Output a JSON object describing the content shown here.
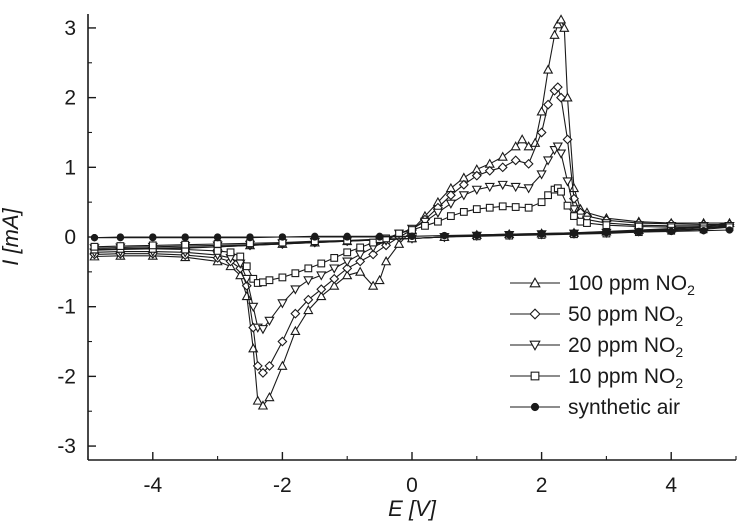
{
  "chart_data": {
    "type": "line",
    "xlabel": "E [V]",
    "ylabel": "I [mA]",
    "xlim": [
      -5,
      5
    ],
    "ylim": [
      -3.2,
      3.2
    ],
    "x_ticks": [
      -4,
      -2,
      0,
      2,
      4
    ],
    "x_tick_labels": [
      "-4",
      "-2",
      "0",
      "2",
      "4"
    ],
    "y_ticks": [
      -3,
      -2,
      -1,
      0,
      1,
      2,
      3
    ],
    "y_tick_labels": [
      "-3",
      "-2",
      "-1",
      "0",
      "1",
      "2",
      "3"
    ],
    "grid": false,
    "legend_position": "bottom-right",
    "series": [
      {
        "name": "100 ppm NO2",
        "legend_label": "100 ppm NO",
        "legend_sub": "2",
        "marker": "triangle-up",
        "color": "#1a1a1a",
        "x": [
          -4.9,
          -4.5,
          -4.0,
          -3.5,
          -3.0,
          -2.8,
          -2.65,
          -2.55,
          -2.45,
          -2.38,
          -2.3,
          -2.2,
          -2.0,
          -1.8,
          -1.6,
          -1.4,
          -1.2,
          -1.0,
          -0.8,
          -0.6,
          -0.5,
          -0.4,
          -0.2,
          0.0,
          0.2,
          0.4,
          0.6,
          0.8,
          1.0,
          1.2,
          1.4,
          1.6,
          1.7,
          1.8,
          1.9,
          2.0,
          2.1,
          2.2,
          2.25,
          2.3,
          2.35,
          2.4,
          2.5,
          2.6,
          2.7,
          3.0,
          3.5,
          4.0,
          4.5,
          4.9,
          4.5,
          4.0,
          3.5,
          3.0,
          2.5,
          2.0,
          1.5,
          1.0,
          0.5,
          0.0,
          -0.5,
          -1.0,
          -1.5,
          -2.0,
          -2.5,
          -3.0,
          -3.5,
          -4.0,
          -4.5,
          -4.9
        ],
        "y": [
          -0.28,
          -0.27,
          -0.27,
          -0.29,
          -0.35,
          -0.42,
          -0.55,
          -0.85,
          -1.6,
          -2.35,
          -2.42,
          -2.3,
          -1.85,
          -1.35,
          -1.05,
          -0.85,
          -0.7,
          -0.55,
          -0.5,
          -0.7,
          -0.62,
          -0.35,
          -0.1,
          0.1,
          0.3,
          0.5,
          0.7,
          0.85,
          0.97,
          1.05,
          1.15,
          1.3,
          1.4,
          1.3,
          1.35,
          1.8,
          2.4,
          2.9,
          3.05,
          3.12,
          3.0,
          2.0,
          0.7,
          0.4,
          0.35,
          0.27,
          0.22,
          0.2,
          0.2,
          0.2,
          0.15,
          0.12,
          0.1,
          0.08,
          0.06,
          0.05,
          0.04,
          0.03,
          0.0,
          -0.02,
          -0.04,
          -0.06,
          -0.08,
          -0.1,
          -0.12,
          -0.14,
          -0.16,
          -0.17,
          -0.18,
          -0.19
        ]
      },
      {
        "name": "50 ppm NO2",
        "legend_label": "50   ppm NO",
        "legend_sub": "2",
        "marker": "diamond",
        "color": "#1a1a1a",
        "x": [
          -4.9,
          -4.5,
          -4.0,
          -3.5,
          -3.0,
          -2.8,
          -2.65,
          -2.55,
          -2.45,
          -2.38,
          -2.3,
          -2.2,
          -2.0,
          -1.8,
          -1.6,
          -1.4,
          -1.2,
          -1.0,
          -0.8,
          -0.6,
          -0.4,
          -0.2,
          0.0,
          0.2,
          0.4,
          0.6,
          0.8,
          1.0,
          1.2,
          1.4,
          1.6,
          1.8,
          2.0,
          2.1,
          2.2,
          2.25,
          2.3,
          2.4,
          2.5,
          2.6,
          2.7,
          3.0,
          3.5,
          4.0,
          4.5,
          4.9,
          4.5,
          4.0,
          3.5,
          3.0,
          2.5,
          2.0,
          1.5,
          1.0,
          0.5,
          0.0,
          -0.5,
          -1.0,
          -1.5,
          -2.0,
          -2.5,
          -3.0,
          -3.5,
          -4.0,
          -4.5,
          -4.9
        ],
        "y": [
          -0.25,
          -0.24,
          -0.24,
          -0.26,
          -0.3,
          -0.35,
          -0.45,
          -0.7,
          -1.3,
          -1.85,
          -1.95,
          -1.85,
          -1.5,
          -1.1,
          -0.9,
          -0.75,
          -0.6,
          -0.45,
          -0.35,
          -0.25,
          -0.12,
          0.0,
          0.1,
          0.25,
          0.42,
          0.6,
          0.75,
          0.88,
          0.95,
          1.0,
          1.1,
          1.05,
          1.5,
          1.9,
          2.1,
          2.15,
          2.0,
          1.4,
          0.55,
          0.35,
          0.3,
          0.24,
          0.2,
          0.19,
          0.18,
          0.18,
          0.14,
          0.11,
          0.09,
          0.07,
          0.05,
          0.04,
          0.03,
          0.02,
          0.0,
          -0.02,
          -0.04,
          -0.06,
          -0.08,
          -0.1,
          -0.12,
          -0.14,
          -0.15,
          -0.16,
          -0.17,
          -0.18
        ]
      },
      {
        "name": "20 ppm NO2",
        "legend_label": "20   ppm NO",
        "legend_sub": "2",
        "marker": "triangle-down",
        "color": "#1a1a1a",
        "x": [
          -4.9,
          -4.5,
          -4.0,
          -3.5,
          -3.0,
          -2.8,
          -2.65,
          -2.55,
          -2.45,
          -2.38,
          -2.3,
          -2.2,
          -2.0,
          -1.8,
          -1.6,
          -1.4,
          -1.2,
          -1.0,
          -0.8,
          -0.6,
          -0.4,
          -0.2,
          0.0,
          0.2,
          0.4,
          0.6,
          0.8,
          1.0,
          1.2,
          1.4,
          1.6,
          1.8,
          2.0,
          2.1,
          2.2,
          2.25,
          2.3,
          2.4,
          2.5,
          2.6,
          2.7,
          3.0,
          3.5,
          4.0,
          4.5,
          4.9,
          4.5,
          4.0,
          3.5,
          3.0,
          2.5,
          2.0,
          1.5,
          1.0,
          0.5,
          0.0,
          -0.5,
          -1.0,
          -1.5,
          -2.0,
          -2.5,
          -3.0,
          -3.5,
          -4.0,
          -4.5,
          -4.9
        ],
        "y": [
          -0.22,
          -0.21,
          -0.21,
          -0.22,
          -0.26,
          -0.3,
          -0.38,
          -0.6,
          -1.0,
          -1.3,
          -1.32,
          -1.2,
          -0.95,
          -0.75,
          -0.62,
          -0.55,
          -0.45,
          -0.35,
          -0.25,
          -0.15,
          -0.05,
          0.05,
          0.12,
          0.22,
          0.35,
          0.48,
          0.6,
          0.68,
          0.72,
          0.75,
          0.72,
          0.7,
          0.9,
          1.1,
          1.25,
          1.3,
          1.2,
          0.8,
          0.4,
          0.28,
          0.25,
          0.2,
          0.17,
          0.16,
          0.16,
          0.16,
          0.12,
          0.1,
          0.08,
          0.06,
          0.05,
          0.04,
          0.03,
          0.02,
          0.0,
          -0.02,
          -0.04,
          -0.05,
          -0.07,
          -0.09,
          -0.11,
          -0.12,
          -0.13,
          -0.14,
          -0.15,
          -0.16
        ]
      },
      {
        "name": "10 ppm NO2",
        "legend_label": "10   ppm NO",
        "legend_sub": "2",
        "marker": "square",
        "color": "#1a1a1a",
        "x": [
          -4.9,
          -4.5,
          -4.0,
          -3.5,
          -3.0,
          -2.8,
          -2.65,
          -2.55,
          -2.45,
          -2.38,
          -2.3,
          -2.2,
          -2.0,
          -1.8,
          -1.6,
          -1.4,
          -1.2,
          -1.0,
          -0.8,
          -0.6,
          -0.4,
          -0.2,
          0.0,
          0.2,
          0.4,
          0.6,
          0.8,
          1.0,
          1.2,
          1.4,
          1.6,
          1.8,
          2.0,
          2.1,
          2.2,
          2.25,
          2.3,
          2.4,
          2.5,
          2.6,
          2.7,
          3.0,
          3.5,
          4.0,
          4.5,
          4.9,
          4.5,
          4.0,
          3.5,
          3.0,
          2.5,
          2.0,
          1.5,
          1.0,
          0.5,
          0.0,
          -0.5,
          -1.0,
          -1.5,
          -2.0,
          -2.5,
          -3.0,
          -3.5,
          -4.0,
          -4.5,
          -4.9
        ],
        "y": [
          -0.18,
          -0.17,
          -0.17,
          -0.18,
          -0.2,
          -0.22,
          -0.28,
          -0.42,
          -0.6,
          -0.66,
          -0.65,
          -0.62,
          -0.58,
          -0.52,
          -0.45,
          -0.38,
          -0.3,
          -0.22,
          -0.15,
          -0.08,
          -0.02,
          0.05,
          0.1,
          0.16,
          0.22,
          0.3,
          0.36,
          0.4,
          0.42,
          0.44,
          0.43,
          0.42,
          0.5,
          0.6,
          0.68,
          0.7,
          0.65,
          0.45,
          0.3,
          0.22,
          0.2,
          0.17,
          0.15,
          0.14,
          0.14,
          0.14,
          0.11,
          0.09,
          0.07,
          0.05,
          0.04,
          0.03,
          0.02,
          0.01,
          0.0,
          -0.02,
          -0.03,
          -0.05,
          -0.06,
          -0.08,
          -0.09,
          -0.1,
          -0.11,
          -0.12,
          -0.13,
          -0.14
        ]
      },
      {
        "name": "synthetic air",
        "legend_label": "synthetic air",
        "legend_sub": "",
        "marker": "dot",
        "color": "#1a1a1a",
        "x": [
          -4.9,
          -4.5,
          -4.0,
          -3.5,
          -3.0,
          -2.5,
          -2.0,
          -1.5,
          -1.0,
          -0.5,
          0.0,
          0.5,
          1.0,
          1.5,
          2.0,
          2.5,
          3.0,
          3.5,
          4.0,
          4.5,
          4.9,
          4.5,
          4.0,
          3.5,
          3.0,
          2.5,
          2.0,
          1.5,
          1.0,
          0.5,
          0.0,
          -0.5,
          -1.0,
          -1.5,
          -2.0,
          -2.5,
          -3.0,
          -3.5,
          -4.0,
          -4.5,
          -4.9
        ],
        "y": [
          -0.01,
          -0.01,
          -0.01,
          -0.01,
          -0.01,
          -0.01,
          0.0,
          0.0,
          0.0,
          0.0,
          0.01,
          0.02,
          0.03,
          0.04,
          0.05,
          0.06,
          0.07,
          0.08,
          0.08,
          0.09,
          0.1,
          0.09,
          0.08,
          0.07,
          0.06,
          0.05,
          0.04,
          0.03,
          0.02,
          0.02,
          0.01,
          0.01,
          0.01,
          0.01,
          0.0,
          0.0,
          0.0,
          0.0,
          0.0,
          0.0,
          -0.01
        ]
      }
    ]
  }
}
